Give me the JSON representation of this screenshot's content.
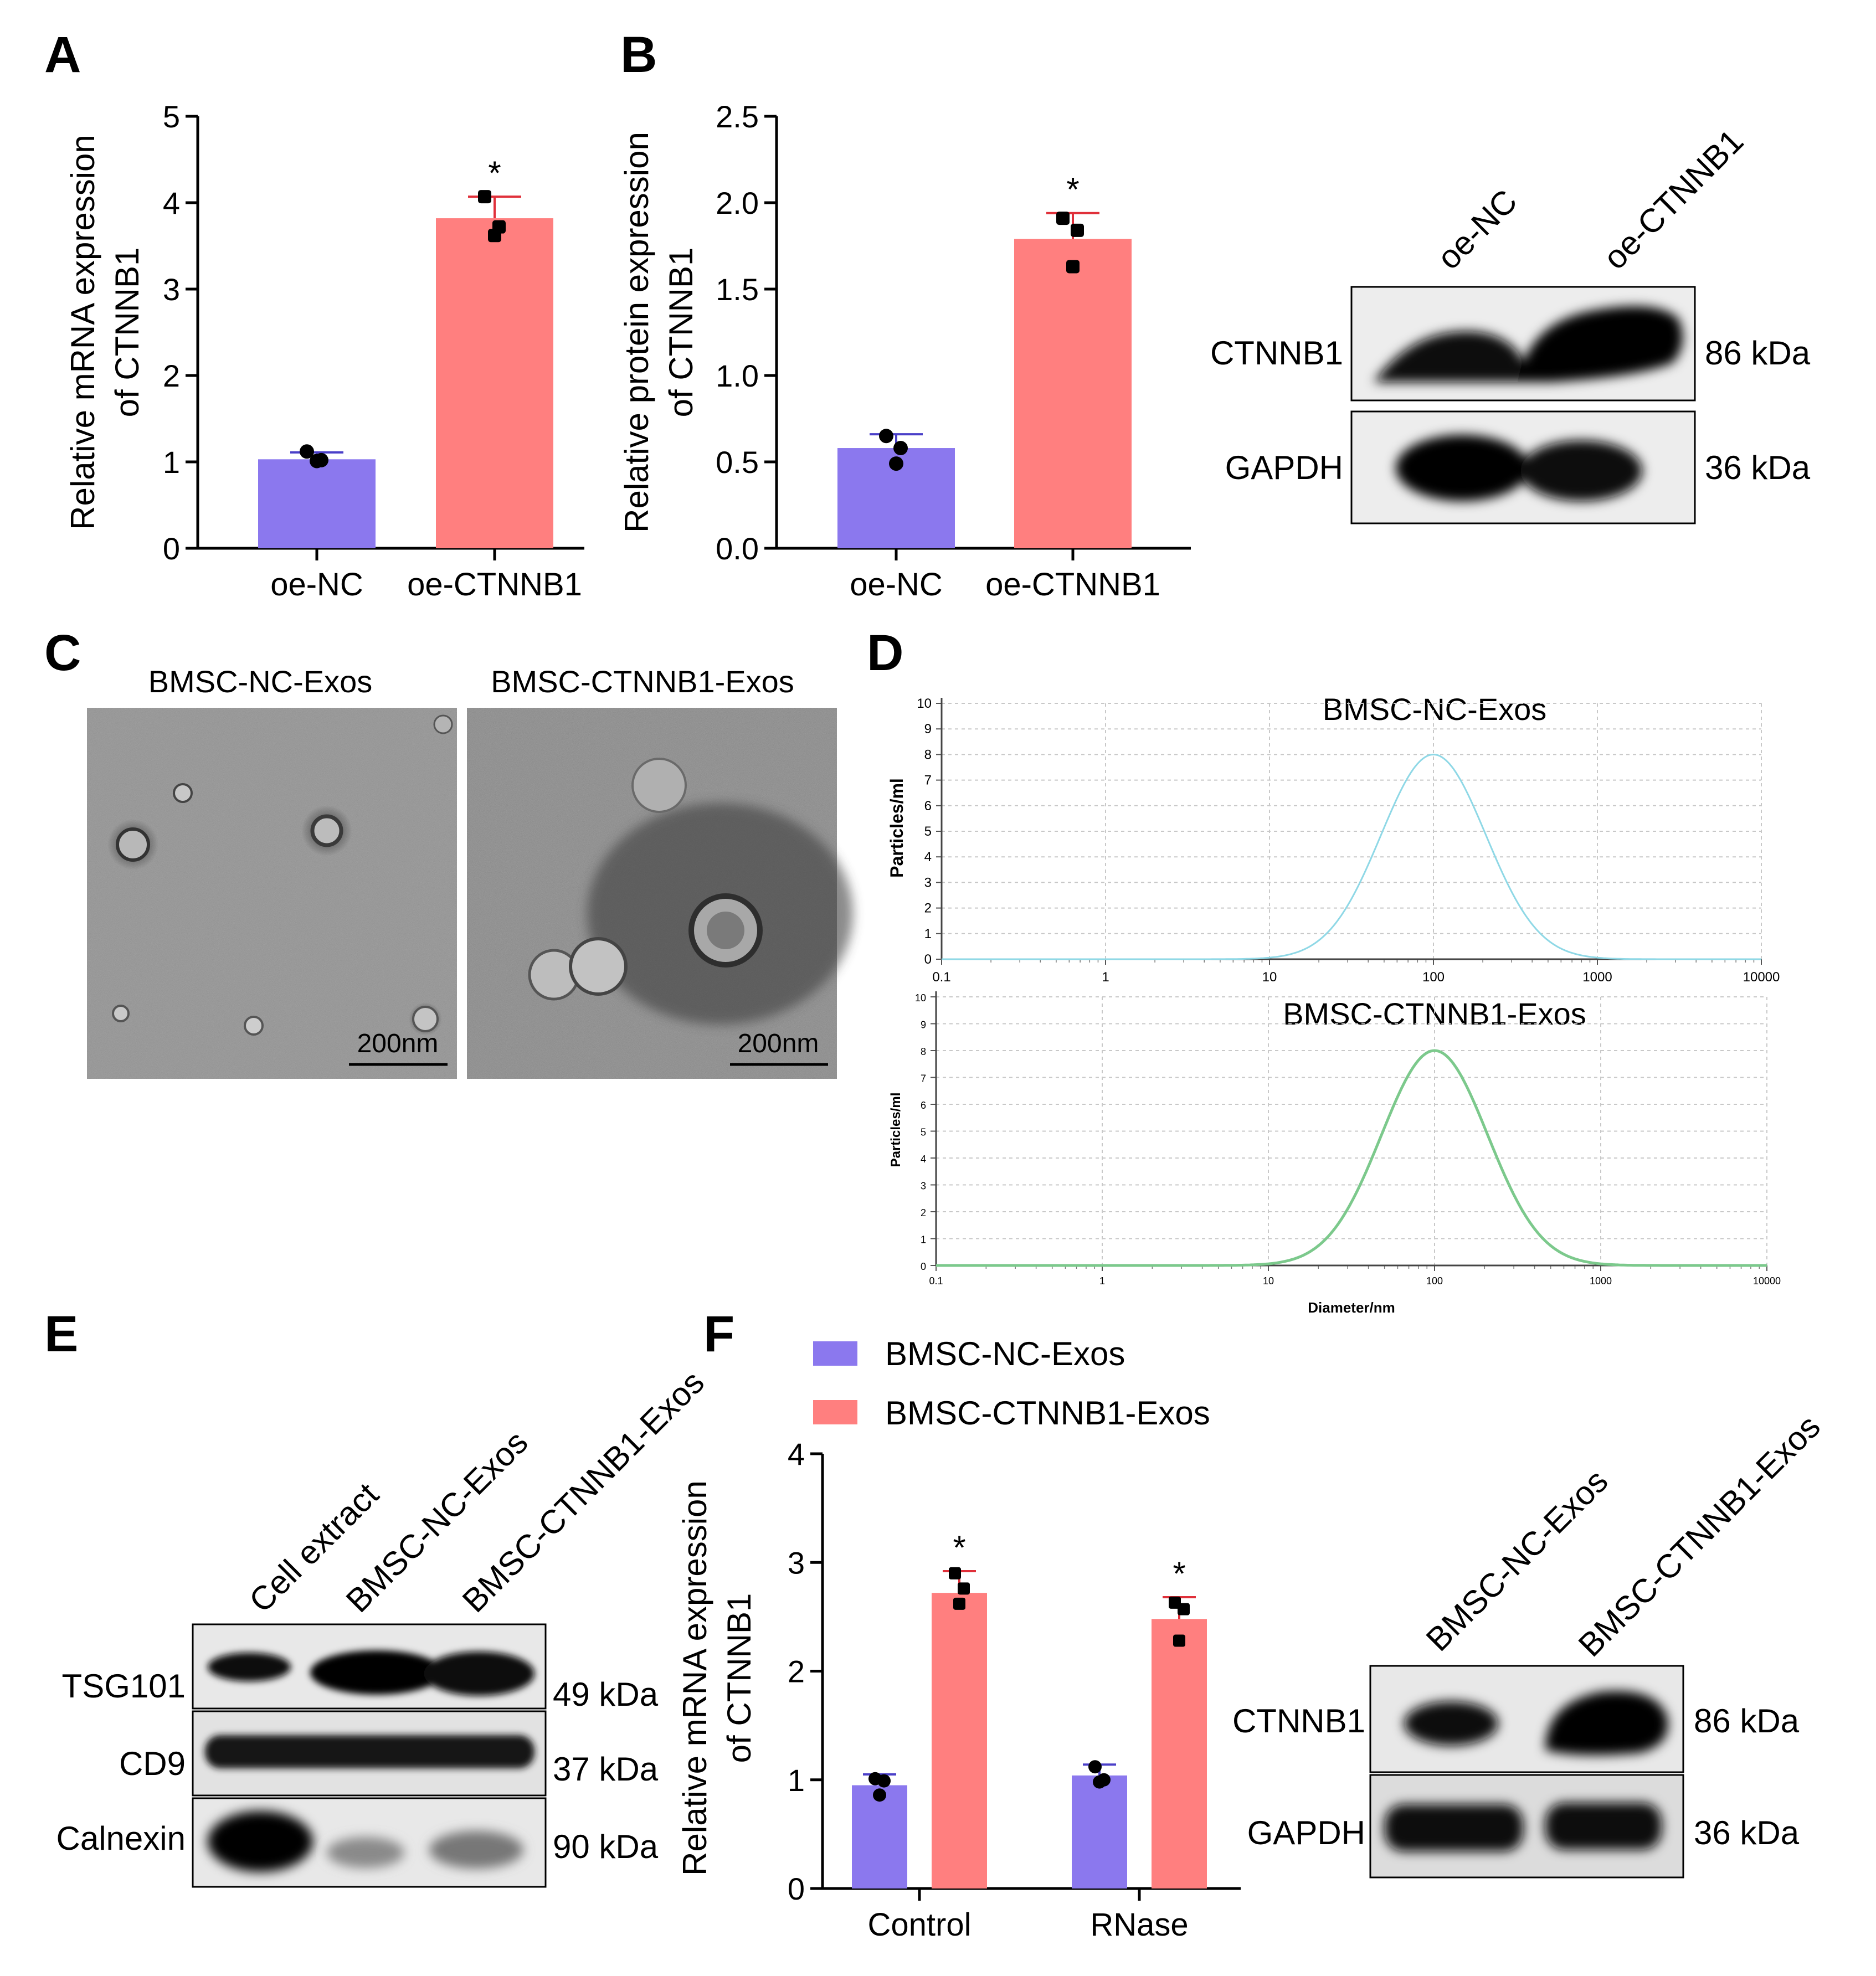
{
  "colors": {
    "nc": "#8B78EE",
    "ctnnb1": "#FF7F7F",
    "error_nc": "#4a3fc8",
    "error_ctnnb1": "#e0303a",
    "nta_upper": "#8fd8e6",
    "nta_lower": "#7cc98c",
    "blot_bg": "#e8e8e8",
    "band": "#0a0a0a",
    "tem_bg": "#8f8f8f"
  },
  "panels": {
    "A": "A",
    "B": "B",
    "C": "C",
    "D": "D",
    "E": "E",
    "F": "F"
  },
  "chart_data": [
    {
      "id": "A",
      "type": "bar",
      "categories": [
        "oe-NC",
        "oe-CTNNB1"
      ],
      "values": [
        1.03,
        3.82
      ],
      "errors": [
        0.08,
        0.25
      ],
      "points": [
        [
          1.12,
          1.02,
          1.01
        ],
        [
          4.07,
          3.72,
          3.62
        ]
      ],
      "significance": [
        "",
        "*"
      ],
      "ylabel_line1": "Relative mRNA expression",
      "ylabel_line2": "of CTNNB1",
      "ylim": [
        0,
        5
      ],
      "yticks": [
        "0",
        "1",
        "2",
        "3",
        "4",
        "5"
      ]
    },
    {
      "id": "B",
      "type": "bar",
      "categories": [
        "oe-NC",
        "oe-CTNNB1"
      ],
      "values": [
        0.58,
        1.79
      ],
      "errors": [
        0.08,
        0.15
      ],
      "points": [
        [
          0.65,
          0.58,
          0.49
        ],
        [
          1.91,
          1.84,
          1.63
        ]
      ],
      "significance": [
        "",
        "*"
      ],
      "ylabel_line1": "Relative protein expression",
      "ylabel_line2": "of CTNNB1",
      "ylim": [
        0,
        2.5
      ],
      "yticks": [
        "0.0",
        "0.5",
        "1.0",
        "1.5",
        "2.0",
        "2.5"
      ]
    },
    {
      "id": "D-upper",
      "type": "line",
      "title": "BMSC-NC-Exos",
      "xscale": "log",
      "xlim": [
        0.1,
        10000
      ],
      "xticks": [
        "0.1",
        "1",
        "10",
        "100",
        "1000",
        "10000"
      ],
      "ylim": [
        0,
        10
      ],
      "yticks": [
        "0",
        "1",
        "2",
        "3",
        "4",
        "5",
        "6",
        "7",
        "8",
        "9",
        "10"
      ],
      "ylabel": "Particles/ml",
      "peak_x": 100,
      "peak_y": 8,
      "log_sigma": 0.32
    },
    {
      "id": "D-lower",
      "type": "line",
      "title": "BMSC-CTNNB1-Exos",
      "xscale": "log",
      "xlim": [
        0.1,
        10000
      ],
      "xticks": [
        "0.1",
        "1",
        "10",
        "100",
        "1000",
        "10000"
      ],
      "ylim": [
        0,
        10
      ],
      "yticks": [
        "0",
        "1",
        "2",
        "3",
        "4",
        "5",
        "6",
        "7",
        "8",
        "9",
        "10"
      ],
      "ylabel": "Particles/ml",
      "xlabel": "Diameter/nm",
      "peak_x": 100,
      "peak_y": 8,
      "log_sigma": 0.32
    },
    {
      "id": "F",
      "type": "bar",
      "categories": [
        "Control",
        "RNase"
      ],
      "series": [
        {
          "name": "BMSC-NC-Exos",
          "values": [
            0.95,
            1.04
          ],
          "errors": [
            0.1,
            0.1
          ],
          "points": [
            [
              1.01,
              0.99,
              0.86
            ],
            [
              1.12,
              1.0,
              0.98
            ]
          ]
        },
        {
          "name": "BMSC-CTNNB1-Exos",
          "values": [
            2.72,
            2.48
          ],
          "errors": [
            0.2,
            0.2
          ],
          "points": [
            [
              2.9,
              2.76,
              2.62
            ],
            [
              2.63,
              2.57,
              2.28
            ]
          ]
        }
      ],
      "significance": [
        "*",
        "*"
      ],
      "ylabel_line1": "Relative mRNA expression",
      "ylabel_line2": "of CTNNB1",
      "ylim": [
        0,
        4
      ],
      "yticks": [
        "0",
        "1",
        "2",
        "3",
        "4"
      ]
    }
  ],
  "blot_B": {
    "lanes": [
      "oe-NC",
      "oe-CTNNB1"
    ],
    "rows": [
      {
        "label": "CTNNB1",
        "size": "86 kDa"
      },
      {
        "label": "GAPDH",
        "size": "36 kDa"
      }
    ]
  },
  "tem_C": {
    "images": [
      {
        "title": "BMSC-NC-Exos",
        "scale": "200nm"
      },
      {
        "title": "BMSC-CTNNB1-Exos",
        "scale": "200nm"
      }
    ]
  },
  "blot_E": {
    "lanes": [
      "Cell extract",
      "BMSC-NC-Exos",
      "BMSC-CTNNB1-Exos"
    ],
    "rows": [
      {
        "label": "TSG101",
        "size": "49 kDa"
      },
      {
        "label": "CD9",
        "size": "37 kDa"
      },
      {
        "label": "Calnexin",
        "size": "90 kDa"
      }
    ]
  },
  "blot_F": {
    "lanes": [
      "BMSC-NC-Exos",
      "BMSC-CTNNB1-Exos"
    ],
    "rows": [
      {
        "label": "CTNNB1",
        "size": "86 kDa"
      },
      {
        "label": "GAPDH",
        "size": "36 kDa"
      }
    ]
  }
}
